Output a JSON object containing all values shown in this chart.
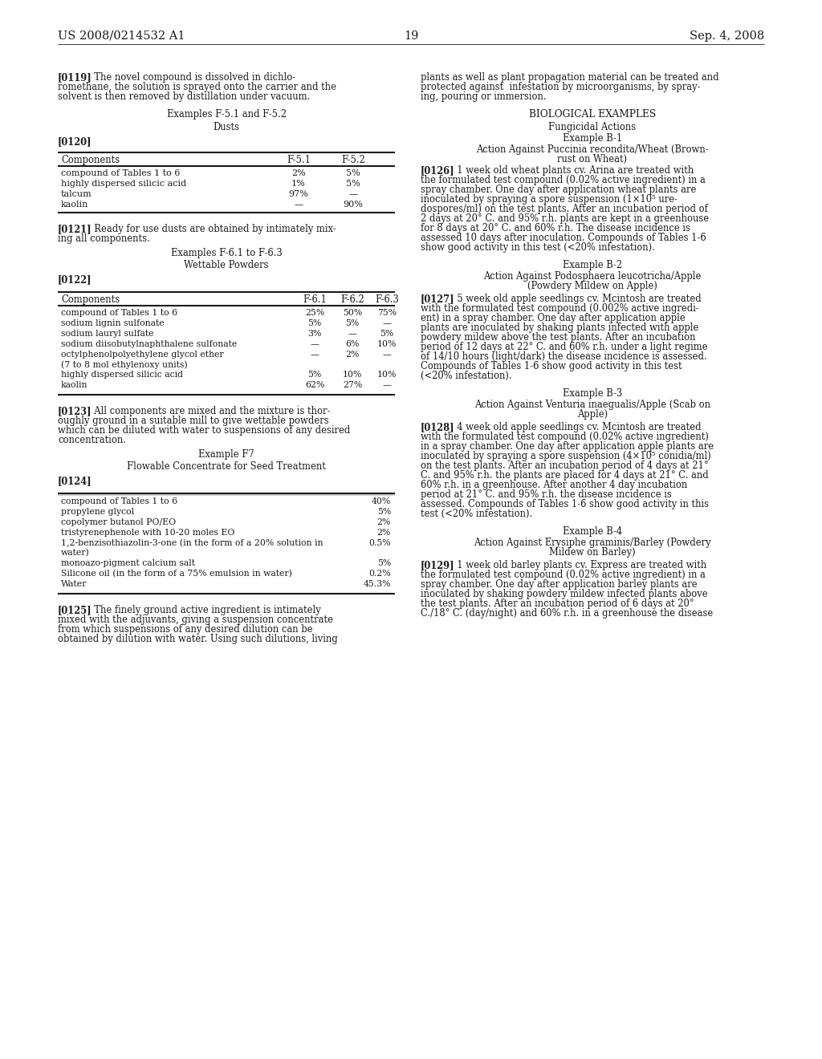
{
  "bg_color": "#ffffff",
  "header_left": "US 2008/0214532 A1",
  "header_right": "Sep. 4, 2008",
  "page_number": "19",
  "table1_rows": [
    [
      "compound of Tables 1 to 6",
      "2%",
      "5%"
    ],
    [
      "highly dispersed silicic acid",
      "1%",
      "5%"
    ],
    [
      "talcum",
      "97%",
      "—"
    ],
    [
      "kaolin",
      "—",
      "90%"
    ]
  ],
  "table2_rows": [
    [
      "compound of Tables 1 to 6",
      "25%",
      "50%",
      "75%"
    ],
    [
      "sodium lignin sulfonate",
      "5%",
      "5%",
      "—"
    ],
    [
      "sodium lauryl sulfate",
      "3%",
      "—",
      "5%"
    ],
    [
      "sodium diisobutylnaphthalene sulfonate",
      "—",
      "6%",
      "10%"
    ],
    [
      "octylphenolpolyethylene glycol ether\n(7 to 8 mol ethylenoxy units)",
      "—",
      "2%",
      "—"
    ],
    [
      "highly dispersed silicic acid",
      "5%",
      "10%",
      "10%"
    ],
    [
      "kaolin",
      "62%",
      "27%",
      "—"
    ]
  ],
  "table3_rows": [
    [
      "compound of Tables 1 to 6",
      "40%"
    ],
    [
      "propylene glycol",
      "5%"
    ],
    [
      "copolymer butanol PO/EO",
      "2%"
    ],
    [
      "tristyrenephenole with 10-20 moles EO",
      "2%"
    ],
    [
      "1,2-benzisothiazolin-3-one (in the form of a 20% solution in\nwater)",
      "0.5%"
    ],
    [
      "monoazo-pigment calcium salt",
      "5%"
    ],
    [
      "Silicone oil (in the form of a 75% emulsion in water)",
      "0.2%"
    ],
    [
      "Water",
      "45.3%"
    ]
  ]
}
